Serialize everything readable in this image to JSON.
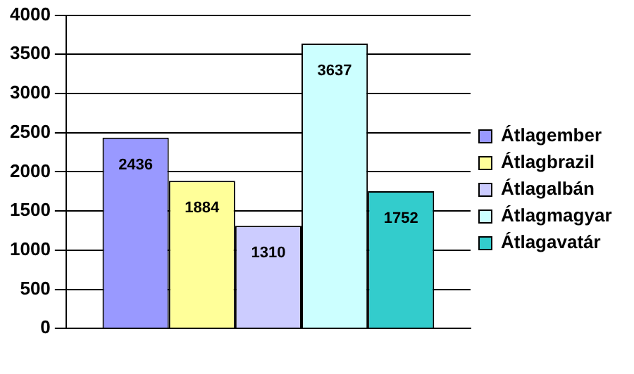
{
  "chart_data": {
    "type": "bar",
    "categories": [
      null
    ],
    "series": [
      {
        "name": "Átlagember",
        "color": "#9999ff",
        "values": [
          2436
        ]
      },
      {
        "name": "Átlagbrazil",
        "color": "#ffff99",
        "values": [
          1884
        ]
      },
      {
        "name": "Átlagalbán",
        "color": "#ccccff",
        "values": [
          1310
        ]
      },
      {
        "name": "Átlagmagyar",
        "color": "#ccffff",
        "values": [
          3637
        ]
      },
      {
        "name": "Átlagavatár",
        "color": "#33cccc",
        "values": [
          1752
        ]
      }
    ],
    "ylim": [
      0,
      4000
    ],
    "yticks": [
      0,
      500,
      1000,
      1500,
      2000,
      2500,
      3000,
      3500,
      4000
    ],
    "grid": "y",
    "legend": "right",
    "data_labels": true
  }
}
